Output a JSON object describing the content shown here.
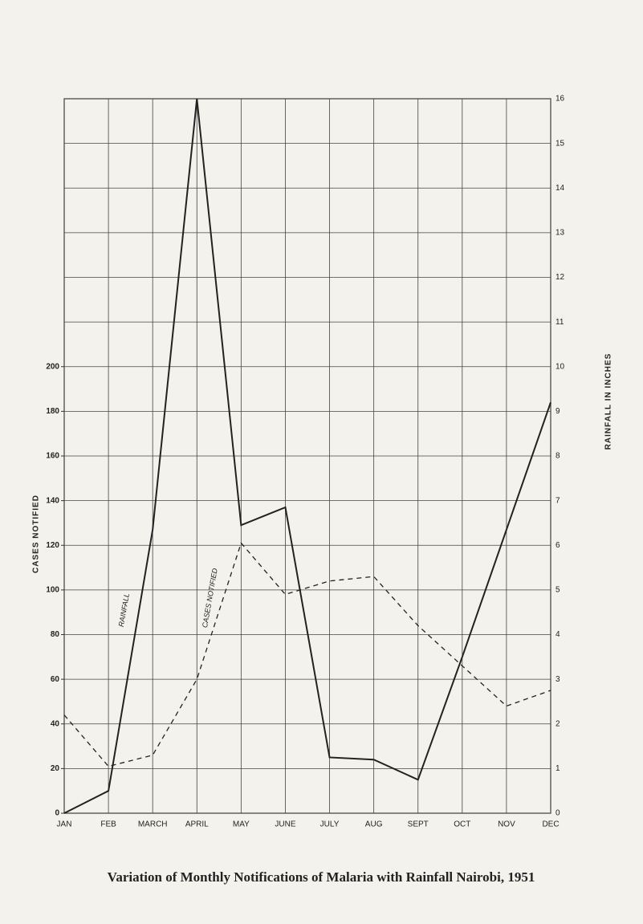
{
  "chart_data": {
    "type": "line",
    "title": "Variation of Monthly Notifications of Malaria with Rainfall Nairobi, 1951",
    "y_label": "CASES NOTIFIED",
    "y2_label": "RAINFALL IN INCHES",
    "categories": [
      "JAN",
      "FEB",
      "MARCH",
      "APRIL",
      "MAY",
      "JUNE",
      "JULY",
      "AUG",
      "SEPT",
      "OCT",
      "NOV",
      "DEC"
    ],
    "ylim": [
      0,
      320
    ],
    "yticks": [
      0,
      20,
      40,
      60,
      80,
      100,
      120,
      140,
      160,
      180,
      200
    ],
    "y2lim": [
      0,
      16
    ],
    "y2ticks": [
      0,
      1,
      2,
      3,
      4,
      5,
      6,
      7,
      8,
      9,
      10,
      11,
      12,
      13,
      14,
      15,
      16
    ],
    "grid": true,
    "series": [
      {
        "name": "CASES NOTIFIED",
        "color": "#222222",
        "dashed": true,
        "values": [
          44,
          21,
          26,
          60,
          121,
          98,
          104,
          106,
          84,
          66,
          48,
          55
        ]
      },
      {
        "name": "RAINFALL",
        "color": "#222222",
        "axis": "y2",
        "values": [
          0,
          0.5,
          6.35,
          16,
          6.45,
          6.85,
          1.25,
          1.2,
          0.75,
          3.5,
          6.35,
          9.2
        ]
      }
    ]
  }
}
